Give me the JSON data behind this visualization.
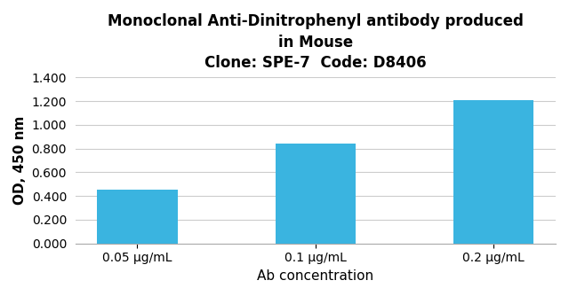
{
  "title_line1": "Monoclonal Anti-Dinitrophenyl antibody produced",
  "title_line2": "in Mouse",
  "title_line3": "Clone: SPE-7  Code: D8406",
  "categories": [
    "0.05 μg/mL",
    "0.1 μg/mL",
    "0.2 μg/mL"
  ],
  "values": [
    0.45,
    0.845,
    1.205
  ],
  "bar_color": "#3ab4e0",
  "xlabel": "Ab concentration",
  "ylabel": "OD, 450 nm",
  "ylim": [
    0.0,
    1.4
  ],
  "yticks": [
    0.0,
    0.2,
    0.4,
    0.6,
    0.8,
    1.0,
    1.2,
    1.4
  ],
  "ytick_labels": [
    "0.000",
    "0.200",
    "0.400",
    "0.600",
    "0.800",
    "1.000",
    "1.200",
    "1.400"
  ],
  "background_color": "#ffffff",
  "title_fontsize": 12,
  "axis_label_fontsize": 11,
  "tick_fontsize": 10,
  "bar_width": 0.45
}
